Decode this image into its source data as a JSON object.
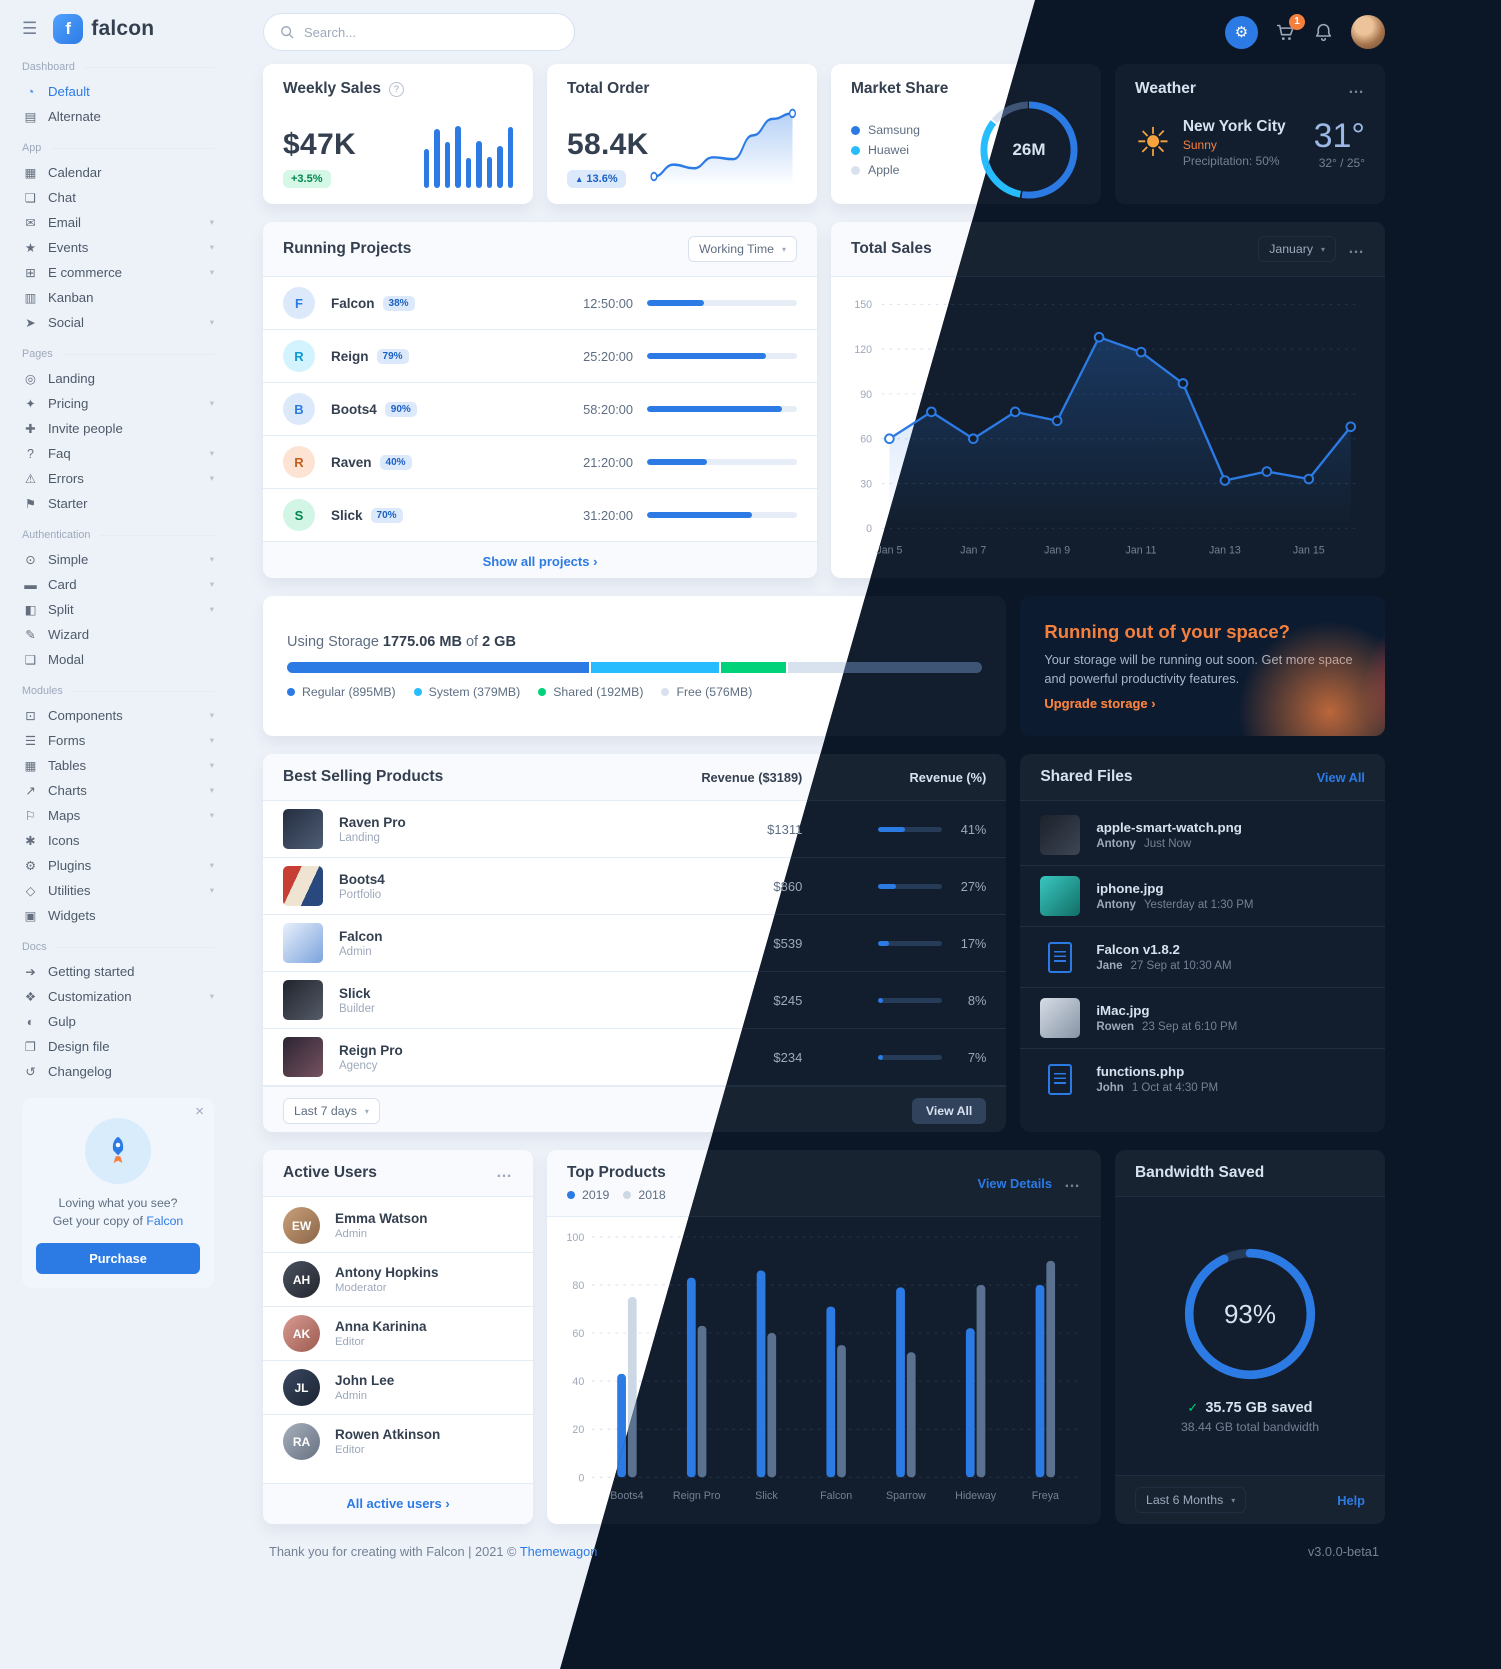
{
  "colors": {
    "primary": "#2c7be5",
    "info": "#27bcfd",
    "success": "#00d27a",
    "warning": "#f5803e",
    "danger": "#e63757"
  },
  "icons": {
    "hamburger": "☰",
    "help": "?",
    "menu": "…",
    "chevron": "▾",
    "check": "✓",
    "gear": "⚙",
    "sun": "☀",
    "close": "×"
  },
  "topbar": {
    "search_placeholder": "Search...",
    "cart_badge": "1"
  },
  "sidebar": {
    "brand": "falcon",
    "brand_initial": "f",
    "sections": [
      {
        "heading": "Dashboard",
        "items": [
          {
            "label": "Default",
            "icon": "◔",
            "icon_name": "pie-chart-icon",
            "name": "sidebar-item-default",
            "cls": "nav-link active",
            "chev": ""
          },
          {
            "label": "Alternate",
            "icon": "▤",
            "icon_name": "bar-chart-icon",
            "name": "sidebar-item-alternate",
            "cls": "nav-link",
            "chev": ""
          }
        ]
      },
      {
        "heading": "App",
        "items": [
          {
            "label": "Calendar",
            "icon": "▦",
            "icon_name": "calendar-icon",
            "name": "sidebar-item-calendar",
            "cls": "nav-link",
            "chev": ""
          },
          {
            "label": "Chat",
            "icon": "❏",
            "icon_name": "chat-icon",
            "name": "sidebar-item-chat",
            "cls": "nav-link",
            "chev": ""
          },
          {
            "label": "Email",
            "icon": "✉",
            "icon_name": "envelope-icon",
            "name": "sidebar-item-email",
            "cls": "nav-link",
            "chev": "▾"
          },
          {
            "label": "Events",
            "icon": "★",
            "icon_name": "calendar-star-icon",
            "name": "sidebar-item-events",
            "cls": "nav-link",
            "chev": "▾"
          },
          {
            "label": "E commerce",
            "icon": "⊞",
            "icon_name": "shopping-cart-icon",
            "name": "sidebar-item-ecommerce",
            "cls": "nav-link",
            "chev": "▾"
          },
          {
            "label": "Kanban",
            "icon": "▥",
            "icon_name": "kanban-icon",
            "name": "sidebar-item-kanban",
            "cls": "nav-link",
            "chev": ""
          },
          {
            "label": "Social",
            "icon": "➤",
            "icon_name": "share-icon",
            "name": "sidebar-item-social",
            "cls": "nav-link",
            "chev": "▾"
          }
        ]
      },
      {
        "heading": "Pages",
        "items": [
          {
            "label": "Landing",
            "icon": "◎",
            "icon_name": "globe-icon",
            "name": "sidebar-item-landing",
            "cls": "nav-link",
            "chev": ""
          },
          {
            "label": "Pricing",
            "icon": "✦",
            "icon_name": "tags-icon",
            "name": "sidebar-item-pricing",
            "cls": "nav-link",
            "chev": "▾"
          },
          {
            "label": "Invite people",
            "icon": "✚",
            "icon_name": "user-plus-icon",
            "name": "sidebar-item-invite-people",
            "cls": "nav-link",
            "chev": ""
          },
          {
            "label": "Faq",
            "icon": "?",
            "icon_name": "question-circle-icon",
            "name": "sidebar-item-faq",
            "cls": "nav-link",
            "chev": "▾"
          },
          {
            "label": "Errors",
            "icon": "⚠",
            "icon_name": "warning-icon",
            "name": "sidebar-item-errors",
            "cls": "nav-link",
            "chev": "▾"
          },
          {
            "label": "Starter",
            "icon": "⚑",
            "icon_name": "flag-icon",
            "name": "sidebar-item-starter",
            "cls": "nav-link",
            "chev": ""
          }
        ]
      },
      {
        "heading": "Authentication",
        "items": [
          {
            "label": "Simple",
            "icon": "⊙",
            "icon_name": "lock-icon",
            "name": "sidebar-item-simple",
            "cls": "nav-link",
            "chev": "▾"
          },
          {
            "label": "Card",
            "icon": "▬",
            "icon_name": "id-card-icon",
            "name": "sidebar-item-card",
            "cls": "nav-link",
            "chev": "▾"
          },
          {
            "label": "Split",
            "icon": "◧",
            "icon_name": "columns-icon",
            "name": "sidebar-item-split",
            "cls": "nav-link",
            "chev": "▾"
          },
          {
            "label": "Wizard",
            "icon": "✎",
            "icon_name": "magic-wand-icon",
            "name": "sidebar-item-wizard",
            "cls": "nav-link",
            "chev": ""
          },
          {
            "label": "Modal",
            "icon": "❑",
            "icon_name": "modal-window-icon",
            "name": "sidebar-item-modal",
            "cls": "nav-link",
            "chev": ""
          }
        ]
      },
      {
        "heading": "Modules",
        "items": [
          {
            "label": "Components",
            "icon": "⊡",
            "icon_name": "puzzle-piece-icon",
            "name": "sidebar-item-components",
            "cls": "nav-link",
            "chev": "▾"
          },
          {
            "label": "Forms",
            "icon": "☰",
            "icon_name": "form-lines-icon",
            "name": "sidebar-item-forms",
            "cls": "nav-link",
            "chev": "▾"
          },
          {
            "label": "Tables",
            "icon": "▦",
            "icon_name": "table-icon",
            "name": "sidebar-item-tables",
            "cls": "nav-link",
            "chev": "▾"
          },
          {
            "label": "Charts",
            "icon": "↗",
            "icon_name": "line-chart-icon",
            "name": "sidebar-item-charts",
            "cls": "nav-link",
            "chev": "▾"
          },
          {
            "label": "Maps",
            "icon": "⚐",
            "icon_name": "map-icon",
            "name": "sidebar-item-maps",
            "cls": "nav-link",
            "chev": "▾"
          },
          {
            "label": "Icons",
            "icon": "✱",
            "icon_name": "icons-icon",
            "name": "sidebar-item-icons",
            "cls": "nav-link",
            "chev": ""
          },
          {
            "label": "Plugins",
            "icon": "⚙",
            "icon_name": "plug-icon",
            "name": "sidebar-item-plugins",
            "cls": "nav-link",
            "chev": "▾"
          },
          {
            "label": "Utilities",
            "icon": "◇",
            "icon_name": "toolbox-icon",
            "name": "sidebar-item-utilities",
            "cls": "nav-link",
            "chev": "▾"
          },
          {
            "label": "Widgets",
            "icon": "▣",
            "icon_name": "widgets-icon",
            "name": "sidebar-item-widgets",
            "cls": "nav-link",
            "chev": ""
          }
        ]
      },
      {
        "heading": "Docs",
        "items": [
          {
            "label": "Getting started",
            "icon": "➔",
            "icon_name": "rocket-icon",
            "name": "sidebar-item-getting-started",
            "cls": "nav-link",
            "chev": ""
          },
          {
            "label": "Customization",
            "icon": "❖",
            "icon_name": "palette-icon",
            "name": "sidebar-item-customization",
            "cls": "nav-link",
            "chev": "▾"
          },
          {
            "label": "Gulp",
            "icon": "◐",
            "icon_name": "gulp-icon",
            "name": "sidebar-item-gulp",
            "cls": "nav-link",
            "chev": ""
          },
          {
            "label": "Design file",
            "icon": "❐",
            "icon_name": "design-file-icon",
            "name": "sidebar-item-design-file",
            "cls": "nav-link",
            "chev": ""
          },
          {
            "label": "Changelog",
            "icon": "↺",
            "icon_name": "history-icon",
            "name": "sidebar-item-changelog",
            "cls": "nav-link",
            "chev": ""
          }
        ]
      }
    ],
    "purchase_card": {
      "line1": "Loving what you see?",
      "line2_prefix": "Get your copy of ",
      "line2_link": "Falcon",
      "button": "Purchase"
    }
  },
  "weekly_sales": {
    "title": "Weekly Sales",
    "value": "$47K",
    "badge": "+3.5%",
    "chart": {
      "type": "bar",
      "values": [
        58,
        88,
        68,
        92,
        45,
        70,
        46,
        62,
        90
      ]
    }
  },
  "total_order": {
    "title": "Total Order",
    "value": "58.4K",
    "badge_arrow": "▲",
    "badge": "13.6%",
    "chart": {
      "type": "area",
      "values": [
        15,
        28,
        24,
        36,
        34,
        60,
        78,
        84
      ]
    }
  },
  "market_share": {
    "title": "Market Share",
    "center_label": "26M",
    "chart": {
      "type": "donut",
      "series": [
        {
          "name": "Samsung",
          "value": 53,
          "color": "var(--primary)"
        },
        {
          "name": "Huawei",
          "value": 33,
          "color": "var(--info)"
        },
        {
          "name": "Apple",
          "value": 14,
          "color": "var(--c-gray)"
        }
      ]
    }
  },
  "weather": {
    "title": "Weather",
    "city": "New York City",
    "condition": "Sunny",
    "precipitation": "Precipitation: 50%",
    "temperature": "31°",
    "range": "32° / 25°"
  },
  "running_projects": {
    "title": "Running Projects",
    "filter_label": "Working Time",
    "footer_link": "Show all projects ›",
    "projects": [
      {
        "initial": "F",
        "name": "Falcon",
        "percent": "38%",
        "bar": 38,
        "time": "12:50:00",
        "avatar_cls": "avatar-initial av-primary"
      },
      {
        "initial": "R",
        "name": "Reign",
        "percent": "79%",
        "bar": 79,
        "time": "25:20:00",
        "avatar_cls": "avatar-initial av-info"
      },
      {
        "initial": "B",
        "name": "Boots4",
        "percent": "90%",
        "bar": 90,
        "time": "58:20:00",
        "avatar_cls": "avatar-initial av-primary"
      },
      {
        "initial": "R",
        "name": "Raven",
        "percent": "40%",
        "bar": 40,
        "time": "21:20:00",
        "avatar_cls": "avatar-initial av-warning"
      },
      {
        "initial": "S",
        "name": "Slick",
        "percent": "70%",
        "bar": 70,
        "time": "31:20:00",
        "avatar_cls": "avatar-initial av-success"
      }
    ]
  },
  "total_sales": {
    "title": "Total Sales",
    "month": "January",
    "chart": {
      "type": "line",
      "x_labels": [
        "Jan 5",
        "Jan 7",
        "Jan 9",
        "Jan 11",
        "Jan 13",
        "Jan 15"
      ],
      "values": [
        60,
        78,
        60,
        78,
        72,
        128,
        118,
        97,
        32,
        38,
        33,
        68
      ],
      "ymax": 150,
      "yticks": [
        0,
        30,
        60,
        90,
        120,
        150
      ]
    }
  },
  "storage": {
    "prefix": "Using Storage",
    "used": "1775.06 MB",
    "of_word": "of",
    "total": "2 GB",
    "segments": [
      {
        "label": "Regular (895MB)",
        "pct": 43.7,
        "color": "var(--primary)"
      },
      {
        "label": "System (379MB)",
        "pct": 18.5,
        "color": "var(--info)"
      },
      {
        "label": "Shared (192MB)",
        "pct": 9.4,
        "color": "var(--success)"
      },
      {
        "label": "Free (576MB)",
        "pct": 28.1,
        "color": "var(--c-gray)"
      }
    ]
  },
  "space_card": {
    "title": "Running out of your space?",
    "body": "Your storage will be running out soon. Get more space and powerful productivity features.",
    "link": "Upgrade storage ›"
  },
  "best_selling": {
    "title": "Best Selling Products",
    "col_revenue": "Revenue ($3189)",
    "col_percent": "Revenue (%)",
    "products": [
      {
        "name": "Raven Pro",
        "category": "Landing",
        "revenue": "$1311",
        "percent": "41%",
        "bar": 41,
        "thumb_cls": "thumb thumb-raven"
      },
      {
        "name": "Boots4",
        "category": "Portfolio",
        "revenue": "$860",
        "percent": "27%",
        "bar": 27,
        "thumb_cls": "thumb thumb-boots4"
      },
      {
        "name": "Falcon",
        "category": "Admin",
        "revenue": "$539",
        "percent": "17%",
        "bar": 17,
        "thumb_cls": "thumb thumb-falcon"
      },
      {
        "name": "Slick",
        "category": "Builder",
        "revenue": "$245",
        "percent": "8%",
        "bar": 8,
        "thumb_cls": "thumb thumb-slick"
      },
      {
        "name": "Reign Pro",
        "category": "Agency",
        "revenue": "$234",
        "percent": "7%",
        "bar": 7,
        "thumb_cls": "thumb thumb-reign"
      }
    ],
    "range_label": "Last 7 days",
    "view_all": "View All"
  },
  "shared_files": {
    "title": "Shared Files",
    "view_all": "View All",
    "files": [
      {
        "name": "apple-smart-watch.png",
        "user": "Antony",
        "time": "Just Now",
        "thumb_cls": "file-thumb file-watch"
      },
      {
        "name": "iphone.jpg",
        "user": "Antony",
        "time": "Yesterday at 1:30 PM",
        "thumb_cls": "file-thumb file-iphone"
      },
      {
        "name": "Falcon v1.8.2",
        "user": "Jane",
        "time": "27 Sep at 10:30 AM",
        "thumb_cls": "file-thumb file-doc"
      },
      {
        "name": "iMac.jpg",
        "user": "Rowen",
        "time": "23 Sep at 6:10 PM",
        "thumb_cls": "file-thumb file-imac"
      },
      {
        "name": "functions.php",
        "user": "John",
        "time": "1 Oct at 4:30 PM",
        "thumb_cls": "file-thumb file-doc"
      }
    ]
  },
  "active_users": {
    "title": "Active Users",
    "footer_link": "All active users ›",
    "users": [
      {
        "name": "Emma Watson",
        "role": "Admin",
        "initials": "EW",
        "avatar_cls": "user-avatar-sm u1"
      },
      {
        "name": "Antony Hopkins",
        "role": "Moderator",
        "initials": "AH",
        "avatar_cls": "user-avatar-sm u2"
      },
      {
        "name": "Anna Karinina",
        "role": "Editor",
        "initials": "AK",
        "avatar_cls": "user-avatar-sm u3"
      },
      {
        "name": "John Lee",
        "role": "Admin",
        "initials": "JL",
        "avatar_cls": "user-avatar-sm u4"
      },
      {
        "name": "Rowen Atkinson",
        "role": "Editor",
        "initials": "RA",
        "avatar_cls": "user-avatar-sm u5"
      }
    ]
  },
  "top_products": {
    "title": "Top Products",
    "view_details": "View Details",
    "chart": {
      "type": "grouped-bar",
      "categories": [
        "Boots4",
        "Reign Pro",
        "Slick",
        "Falcon",
        "Sparrow",
        "Hideway",
        "Freya"
      ],
      "series": [
        {
          "name": "2019",
          "color": "var(--primary)",
          "values": [
            43,
            83,
            86,
            71,
            79,
            62,
            80
          ]
        },
        {
          "name": "2018",
          "color": "var(--c-secondary)",
          "values": [
            75,
            63,
            60,
            55,
            52,
            80,
            90
          ]
        }
      ],
      "yticks": [
        0,
        20,
        40,
        60,
        80,
        100
      ],
      "ymax": 100
    }
  },
  "bandwidth": {
    "title": "Bandwidth Saved",
    "percent": 93,
    "percent_label": "93%",
    "saved_label": "35.75 GB saved",
    "total_label": "38.44 GB total bandwidth",
    "range_label": "Last 6 Months",
    "help_link": "Help"
  },
  "page_footer": {
    "thanks": "Thank you for creating with Falcon | 2021 © ",
    "brand": "Themewagon",
    "version": "v3.0.0-beta1"
  }
}
